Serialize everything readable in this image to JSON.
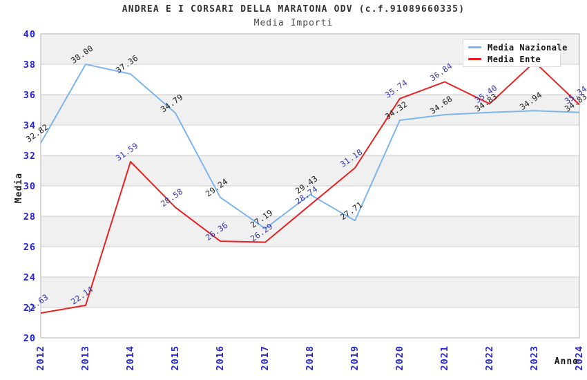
{
  "chart_data": {
    "type": "line",
    "title": "ANDREA E I CORSARI DELLA MARATONA ODV (c.f.91089660335)",
    "subtitle": "Media Importi",
    "xlabel": "Anno",
    "ylabel": "Media",
    "x": [
      "2012",
      "2013",
      "2014",
      "2015",
      "2016",
      "2017",
      "2018",
      "2019",
      "2020",
      "2021",
      "2022",
      "2023",
      "2024"
    ],
    "ylim": [
      20,
      40
    ],
    "ytick_step": 2,
    "grid": true,
    "band_fill": "alternating horizontal 2-unit bands, gray on 38-40, 34-36, 30-32, 26-28, 22-24",
    "legend_position": "top-right, overlapping plot (covers red 2023 peak and its label)",
    "series": [
      {
        "name": "Media Nazionale",
        "color": "#7cb5ec",
        "label_color": "#1a1a1a",
        "values": [
          32.82,
          38.0,
          37.36,
          34.79,
          29.24,
          27.19,
          29.43,
          27.71,
          34.32,
          34.68,
          34.83,
          34.94,
          34.83
        ],
        "point_labels": [
          "32.82",
          "38.00",
          "37.36",
          "34.79",
          "29.24",
          "27.19",
          "29.43",
          "27.71",
          "34.32",
          "34.68",
          "34.83",
          "34.94",
          "34.83"
        ]
      },
      {
        "name": "Media Ente",
        "color": "#e82222",
        "label_color": "#3434ad",
        "values": [
          21.63,
          22.14,
          31.59,
          28.58,
          26.36,
          26.29,
          28.74,
          31.18,
          35.74,
          36.84,
          35.4,
          38.15,
          35.34
        ],
        "point_labels": [
          "21.63",
          "22.14",
          "31.59",
          "28.58",
          "26.36",
          "26.29",
          "28.74",
          "31.18",
          "35.74",
          "36.84",
          "35.40",
          "",
          "35.34"
        ]
      }
    ],
    "colors": {
      "band": "#f0f0f0",
      "grid": "#cccccc",
      "plot_border": "#b3b3b3",
      "tick_label": "#2424cf",
      "axis_title": "#1a1a1a",
      "title": "#333333",
      "subtitle": "#4d4d4d",
      "legend_bg": "#ffffff"
    }
  }
}
